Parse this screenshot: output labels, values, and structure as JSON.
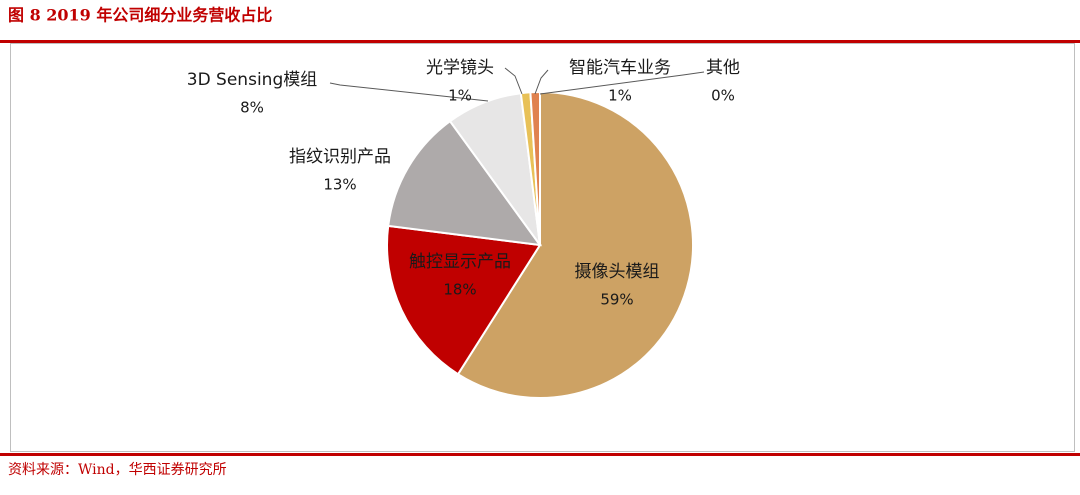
{
  "title": "图 8   2019 年公司细分业务营收占比",
  "chart_data": {
    "type": "pie",
    "categories": [
      "摄像头模组",
      "触控显示产品",
      "指纹识别产品",
      "3D Sensing模组",
      "光学镜头",
      "智能汽车业务",
      "其他"
    ],
    "values": [
      59,
      18,
      13,
      8,
      1,
      1,
      0
    ],
    "value_labels": [
      "59%",
      "18%",
      "13%",
      "8%",
      "1%",
      "1%",
      "0%"
    ],
    "colors": [
      "#cda264",
      "#c00000",
      "#aeaaaa",
      "#e7e6e6",
      "#e8c158",
      "#e0824f",
      "#a5a5a5"
    ]
  },
  "source": "资料来源：Wind，华西证券研究所"
}
